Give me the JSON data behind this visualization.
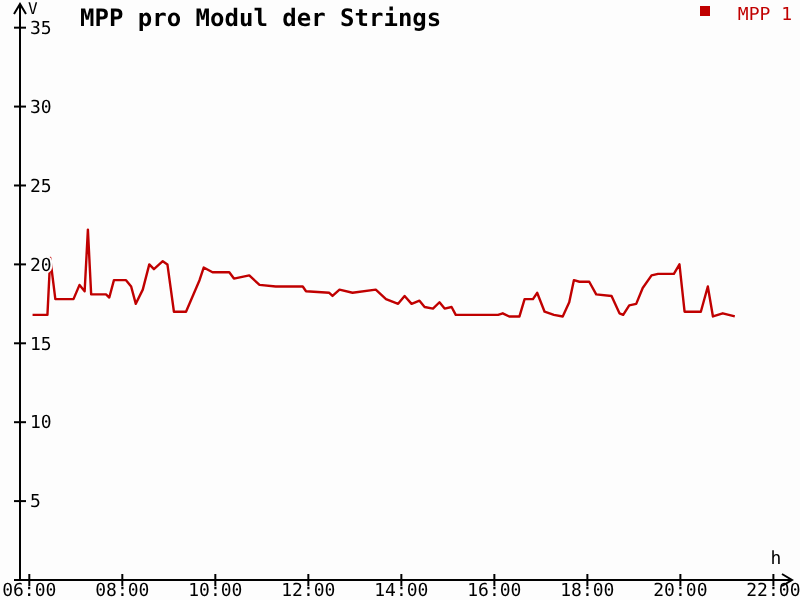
{
  "chart_data": {
    "type": "line",
    "title": "MPP pro Modul der Strings",
    "xlabel": "h",
    "ylabel": "V",
    "legend": "top right",
    "grid": false,
    "marker": "none",
    "line_style": "solid",
    "xlim": [
      5.8,
      22.4
    ],
    "ylim": [
      0,
      36.5
    ],
    "xticks": [
      {
        "value": 6,
        "label": "06:00"
      },
      {
        "value": 8,
        "label": "08:00"
      },
      {
        "value": 10,
        "label": "10:00"
      },
      {
        "value": 12,
        "label": "12:00"
      },
      {
        "value": 14,
        "label": "14:00"
      },
      {
        "value": 16,
        "label": "16:00"
      },
      {
        "value": 18,
        "label": "18:00"
      },
      {
        "value": 20,
        "label": "20:00"
      },
      {
        "value": 22,
        "label": "22:00"
      }
    ],
    "yticks": [
      {
        "value": 0,
        "label": null
      },
      5,
      10,
      15,
      20,
      25,
      30,
      35
    ],
    "series": [
      {
        "name": "MPP 1",
        "color": "#c00000",
        "x": [
          6.07,
          6.39,
          6.45,
          6.56,
          6.95,
          7.08,
          7.19,
          7.26,
          7.33,
          7.65,
          7.72,
          7.82,
          8.08,
          8.19,
          8.29,
          8.44,
          8.58,
          8.68,
          8.87,
          8.97,
          9.11,
          9.37,
          9.66,
          9.75,
          9.94,
          10.3,
          10.4,
          10.73,
          10.95,
          11.3,
          11.88,
          11.95,
          12.45,
          12.52,
          12.67,
          12.95,
          13.45,
          13.67,
          13.93,
          14.07,
          14.22,
          14.39,
          14.5,
          14.68,
          14.82,
          14.93,
          15.08,
          15.17,
          16.08,
          16.18,
          16.32,
          16.54,
          16.65,
          16.83,
          16.92,
          17.08,
          17.28,
          17.47,
          17.61,
          17.71,
          17.83,
          18.04,
          18.19,
          18.52,
          18.69,
          18.77,
          18.9,
          19.05,
          19.19,
          19.38,
          19.52,
          19.86,
          19.98,
          20.09,
          20.44,
          20.59,
          20.7,
          20.91,
          21.17
        ],
        "values": [
          16.8,
          16.8,
          20.4,
          17.8,
          17.8,
          18.7,
          18.3,
          22.2,
          18.1,
          18.1,
          17.9,
          19.0,
          19.0,
          18.6,
          17.5,
          18.4,
          20.0,
          19.7,
          20.2,
          20.0,
          17.0,
          17.0,
          19.0,
          19.8,
          19.5,
          19.5,
          19.1,
          19.3,
          18.7,
          18.6,
          18.6,
          18.3,
          18.2,
          18.0,
          18.4,
          18.2,
          18.4,
          17.8,
          17.5,
          18.0,
          17.5,
          17.7,
          17.3,
          17.2,
          17.6,
          17.2,
          17.3,
          16.8,
          16.8,
          16.9,
          16.7,
          16.7,
          17.8,
          17.8,
          18.2,
          17.0,
          16.8,
          16.7,
          17.6,
          19.0,
          18.9,
          18.9,
          18.1,
          18.0,
          16.9,
          16.8,
          17.4,
          17.5,
          18.5,
          19.3,
          19.4,
          19.4,
          20.0,
          17.0,
          17.0,
          18.6,
          16.7,
          16.9,
          16.7
        ]
      }
    ]
  }
}
